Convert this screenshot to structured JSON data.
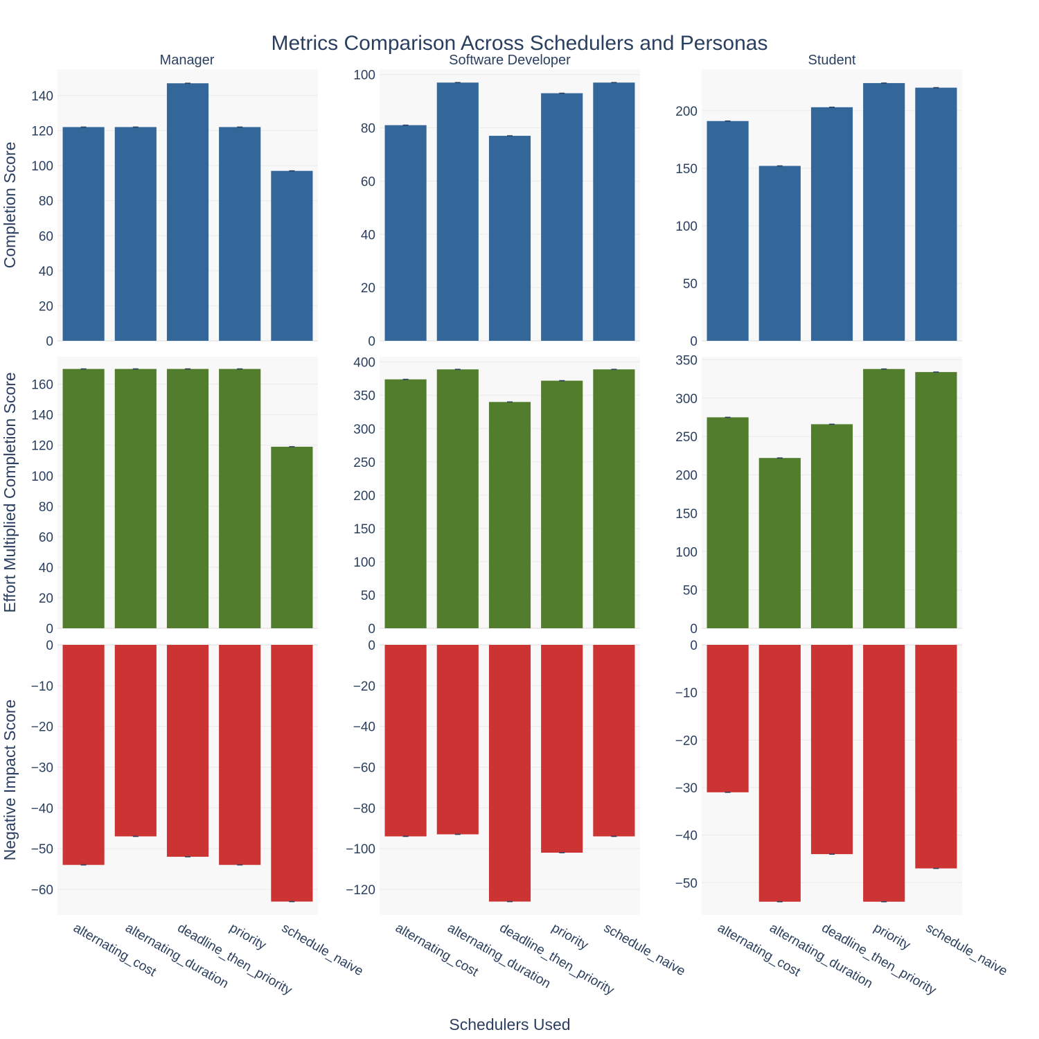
{
  "chart_data": {
    "type": "bar",
    "title": "Metrics Comparison Across Schedulers and Personas",
    "xlabel": "Schedulers Used",
    "categories": [
      "alternating_cost",
      "alternating_duration",
      "deadline_then_priority",
      "priority",
      "schedule_naive"
    ],
    "columns": [
      "Manager",
      "Software Developer",
      "Student"
    ],
    "rows": [
      {
        "ylabel": "Completion Score",
        "color": "#336699"
      },
      {
        "ylabel": "Effort Multiplied Completion Score",
        "color": "#517d2c"
      },
      {
        "ylabel": "Negative Impact Score",
        "color": "#cc3333"
      }
    ],
    "panels": [
      {
        "row": 0,
        "col": 0,
        "values": [
          122,
          122,
          147,
          122,
          97
        ],
        "ylim": [
          0,
          155
        ],
        "yticks": [
          0,
          20,
          40,
          60,
          80,
          100,
          120,
          140
        ]
      },
      {
        "row": 0,
        "col": 1,
        "values": [
          81,
          97,
          77,
          93,
          97
        ],
        "ylim": [
          0,
          102
        ],
        "yticks": [
          0,
          20,
          40,
          60,
          80,
          100
        ]
      },
      {
        "row": 0,
        "col": 2,
        "values": [
          191,
          152,
          203,
          224,
          220
        ],
        "ylim": [
          0,
          236
        ],
        "yticks": [
          0,
          50,
          100,
          150,
          200
        ]
      },
      {
        "row": 1,
        "col": 0,
        "values": [
          170,
          170,
          170,
          170,
          119
        ],
        "ylim": [
          0,
          178
        ],
        "yticks": [
          0,
          20,
          40,
          60,
          80,
          100,
          120,
          140,
          160
        ]
      },
      {
        "row": 1,
        "col": 1,
        "values": [
          374,
          389,
          340,
          372,
          389
        ],
        "ylim": [
          0,
          408
        ],
        "yticks": [
          0,
          50,
          100,
          150,
          200,
          250,
          300,
          350,
          400
        ]
      },
      {
        "row": 1,
        "col": 2,
        "values": [
          275,
          222,
          266,
          338,
          334
        ],
        "ylim": [
          0,
          354
        ],
        "yticks": [
          0,
          50,
          100,
          150,
          200,
          250,
          300,
          350
        ]
      },
      {
        "row": 2,
        "col": 0,
        "values": [
          -54,
          -47,
          -52,
          -54,
          -63
        ],
        "ylim": [
          -66.3,
          0
        ],
        "yticks": [
          0,
          -10,
          -20,
          -30,
          -40,
          -50,
          -60
        ]
      },
      {
        "row": 2,
        "col": 1,
        "values": [
          -94,
          -93,
          -126,
          -102,
          -94
        ],
        "ylim": [
          -132.6,
          0
        ],
        "yticks": [
          0,
          -20,
          -40,
          -60,
          -80,
          -100,
          -120
        ]
      },
      {
        "row": 2,
        "col": 2,
        "values": [
          -31,
          -54,
          -44,
          -54,
          -47
        ],
        "ylim": [
          -56.8,
          0
        ],
        "yticks": [
          0,
          -10,
          -20,
          -30,
          -40,
          -50
        ]
      }
    ],
    "grid": true,
    "legend": "none"
  }
}
